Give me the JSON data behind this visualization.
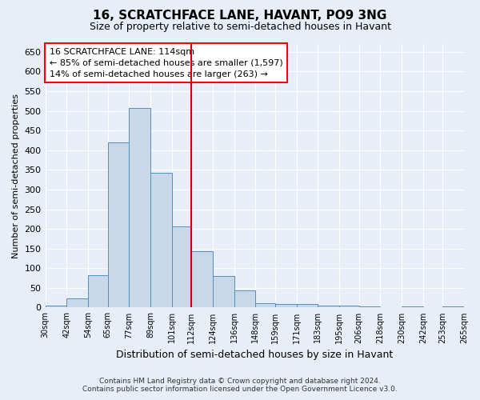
{
  "title": "16, SCRATCHFACE LANE, HAVANT, PO9 3NG",
  "subtitle": "Size of property relative to semi-detached houses in Havant",
  "xlabel": "Distribution of semi-detached houses by size in Havant",
  "ylabel": "Number of semi-detached properties",
  "footer_line1": "Contains HM Land Registry data © Crown copyright and database right 2024.",
  "footer_line2": "Contains public sector information licensed under the Open Government Licence v3.0.",
  "annotation_line1": "16 SCRATCHFACE LANE: 114sqm",
  "annotation_line2": "← 85% of semi-detached houses are smaller (1,597)",
  "annotation_line3": "14% of semi-detached houses are larger (263) →",
  "bar_color": "#c8d8e8",
  "bar_edge_color": "#5090c0",
  "vline_x": 112,
  "vline_color": "#cc0000",
  "bins": [
    30,
    42,
    54,
    65,
    77,
    89,
    101,
    112,
    124,
    136,
    148,
    159,
    171,
    183,
    195,
    206,
    218,
    230,
    242,
    253,
    265
  ],
  "values": [
    5,
    23,
    83,
    420,
    507,
    343,
    207,
    143,
    80,
    44,
    12,
    8,
    8,
    4,
    4,
    2,
    1,
    2,
    0,
    2
  ],
  "ylim": [
    0,
    670
  ],
  "yticks": [
    0,
    50,
    100,
    150,
    200,
    250,
    300,
    350,
    400,
    450,
    500,
    550,
    600,
    650
  ],
  "background_color": "#e8eef8",
  "plot_bg_color": "#e8eef8",
  "grid_color": "#ffffff",
  "title_fontsize": 11,
  "subtitle_fontsize": 9,
  "xlabel_fontsize": 9,
  "ylabel_fontsize": 8,
  "xtick_fontsize": 7,
  "ytick_fontsize": 8,
  "footer_fontsize": 6.5,
  "ann_fontsize": 8
}
